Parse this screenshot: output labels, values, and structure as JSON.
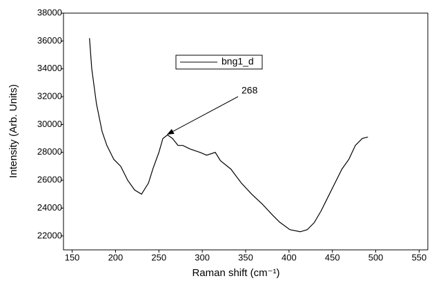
{
  "chart_data": {
    "type": "line",
    "xlabel": "Raman shift (cm⁻¹)",
    "ylabel": "Intensity (Arb. Units)",
    "annotation": {
      "text": "268",
      "x": 260,
      "y": 29300
    },
    "xlim": [
      140,
      560
    ],
    "xticks": [
      150,
      200,
      250,
      300,
      350,
      400,
      450,
      500,
      550
    ],
    "ylim": [
      21000,
      38000
    ],
    "yticks": [
      22000,
      24000,
      26000,
      28000,
      30000,
      32000,
      34000,
      36000,
      38000
    ],
    "legend": "top",
    "series": [
      {
        "name": "bng1_d",
        "color": "#000000",
        "x": [
          170,
          172.6,
          178,
          184.5,
          190,
          198,
          206,
          214,
          222,
          230,
          238,
          243,
          250,
          254.6,
          260,
          265.7,
          272,
          277.6,
          285.6,
          297.5,
          305,
          315,
          321,
          333,
          345,
          357,
          369,
          381,
          389,
          401,
          413,
          421,
          429,
          437,
          445,
          453,
          461,
          469,
          476.5,
          484.5,
          491
        ],
        "values": [
          36200,
          34000,
          31500,
          29500,
          28500,
          27500,
          27000,
          26000,
          25300,
          25000,
          25800,
          26800,
          28000,
          29000,
          29250,
          29000,
          28500,
          28500,
          28250,
          28000,
          27800,
          28000,
          27400,
          26800,
          25800,
          25000,
          24300,
          23500,
          23000,
          22450,
          22300,
          22450,
          22950,
          23800,
          24800,
          25800,
          26800,
          27500,
          28500,
          29000,
          29100
        ]
      }
    ]
  }
}
